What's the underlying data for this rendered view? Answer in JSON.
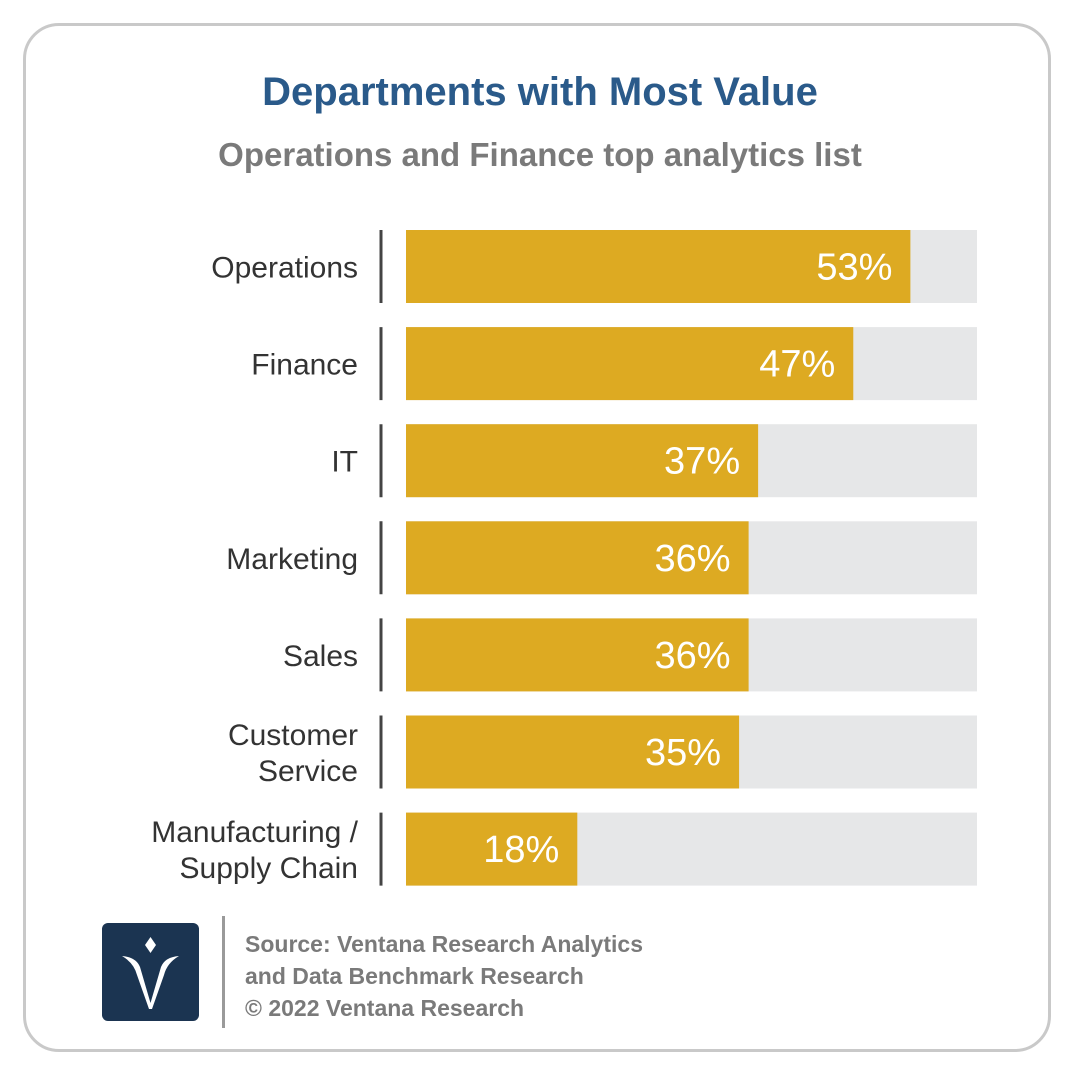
{
  "header": {
    "title": "Departments with Most Value",
    "subtitle": "Operations and Finance top analytics list"
  },
  "chart_data": {
    "type": "bar",
    "orientation": "horizontal",
    "title": "Departments with Most Value",
    "subtitle": "Operations and Finance top analytics list",
    "categories": [
      [
        "Operations"
      ],
      [
        "Finance"
      ],
      [
        "IT"
      ],
      [
        "Marketing"
      ],
      [
        "Sales"
      ],
      [
        "Customer",
        "Service"
      ],
      [
        "Manufacturing /",
        "Supply Chain"
      ]
    ],
    "values": [
      53,
      47,
      37,
      36,
      36,
      35,
      18
    ],
    "value_labels": [
      "53%",
      "47%",
      "37%",
      "36%",
      "36%",
      "35%",
      "18%"
    ],
    "xlim": [
      0,
      60
    ],
    "grid": false,
    "legend": "none",
    "bar_color": "#ddaa22",
    "track_color": "#e6e7e8"
  },
  "footer": {
    "source_lines": [
      "Source: Ventana Research Analytics",
      "and Data Benchmark Research",
      "© 2022 Ventana Research"
    ],
    "logo_icon": "ventana-v-logo-icon"
  },
  "colors": {
    "title": "#2a5a8a",
    "subtitle": "#7a7a7a",
    "logo_bg": "#1b3451",
    "border": "#c9c9c9"
  }
}
